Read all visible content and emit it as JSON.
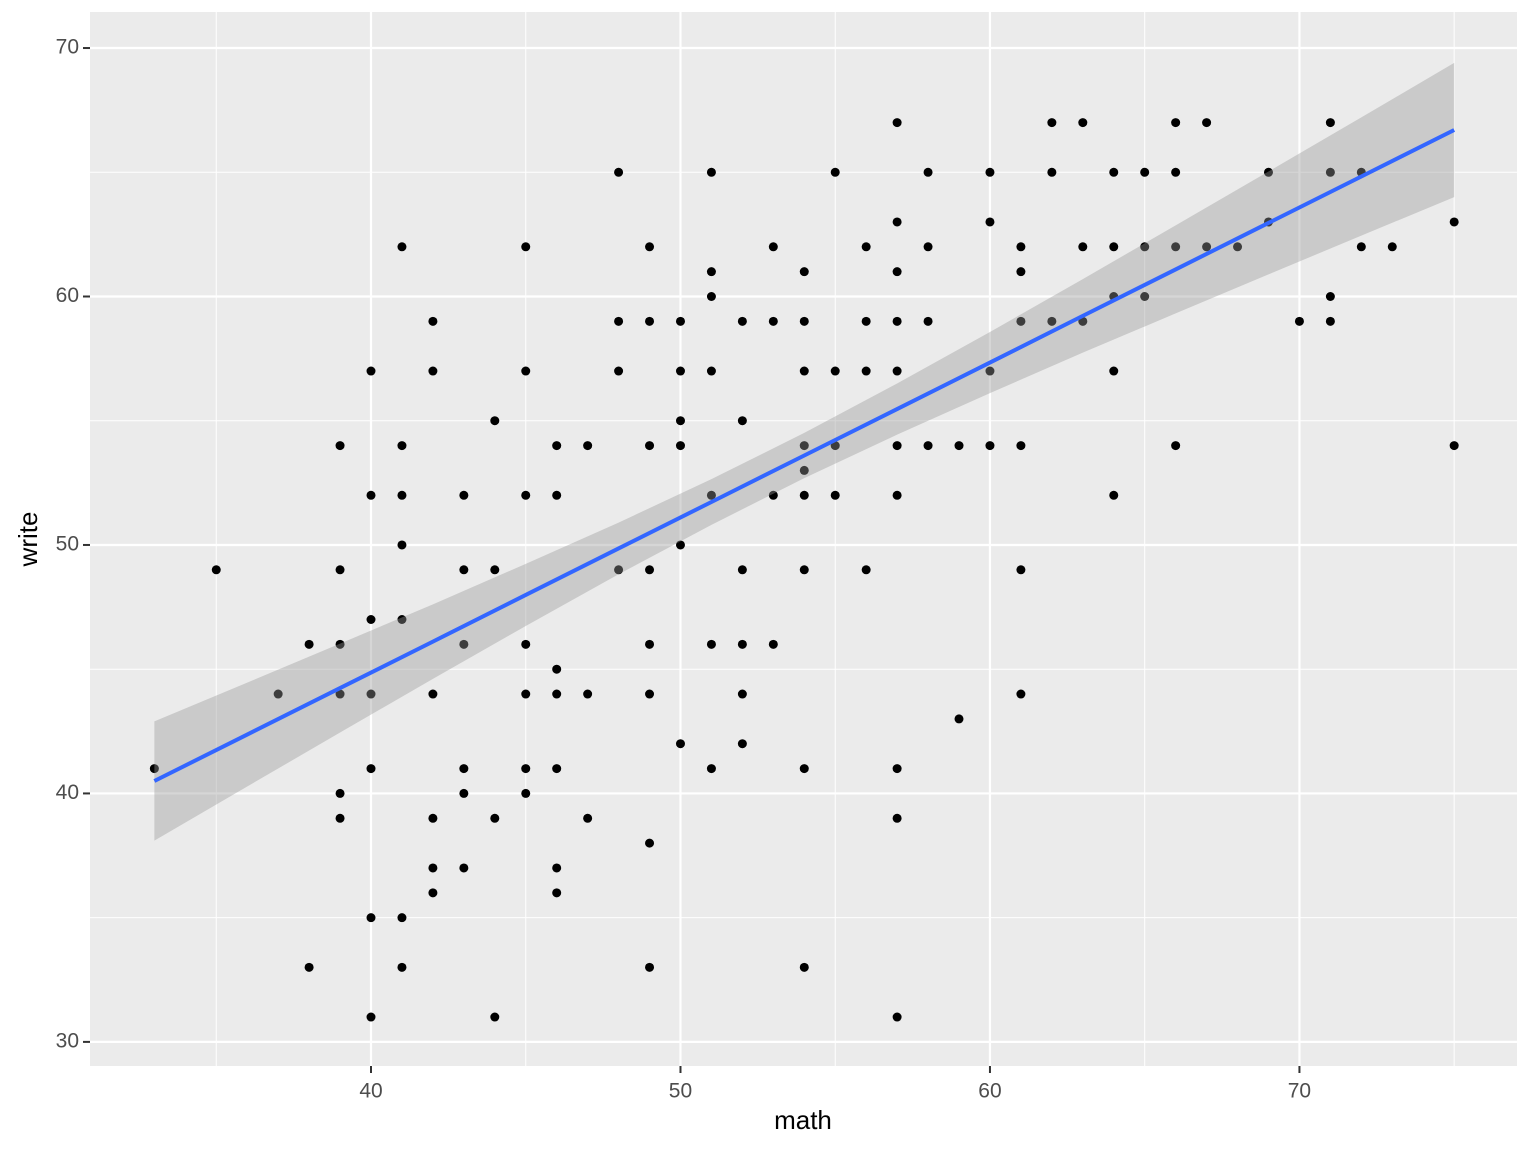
{
  "chart_data": {
    "type": "scatter",
    "x_label": "math",
    "y_label": "write",
    "xlim": [
      30.92,
      77.03
    ],
    "ylim": [
      29.03,
      71.45
    ],
    "xticks": [
      40,
      50,
      60,
      70
    ],
    "yticks": [
      30,
      40,
      50,
      60,
      70
    ],
    "xminor": [
      35,
      45,
      55,
      65,
      75
    ],
    "yminor": [
      35,
      45,
      55,
      65
    ],
    "grid": true,
    "point_color": "#000000",
    "points": [
      [
        33,
        41
      ],
      [
        35,
        49
      ],
      [
        37,
        44
      ],
      [
        38,
        46
      ],
      [
        38,
        33
      ],
      [
        39,
        54
      ],
      [
        39,
        49
      ],
      [
        39,
        46
      ],
      [
        39,
        44
      ],
      [
        39,
        40
      ],
      [
        39,
        39
      ],
      [
        40,
        57
      ],
      [
        40,
        52
      ],
      [
        40,
        47
      ],
      [
        40,
        44
      ],
      [
        40,
        41
      ],
      [
        40,
        35
      ],
      [
        40,
        31
      ],
      [
        41,
        62
      ],
      [
        41,
        54
      ],
      [
        41,
        52
      ],
      [
        41,
        50
      ],
      [
        41,
        47
      ],
      [
        41,
        35
      ],
      [
        41,
        33
      ],
      [
        42,
        59
      ],
      [
        42,
        57
      ],
      [
        42,
        44
      ],
      [
        42,
        39
      ],
      [
        42,
        37
      ],
      [
        42,
        36
      ],
      [
        43,
        52
      ],
      [
        43,
        49
      ],
      [
        43,
        46
      ],
      [
        43,
        41
      ],
      [
        43,
        40
      ],
      [
        43,
        37
      ],
      [
        44,
        55
      ],
      [
        44,
        49
      ],
      [
        44,
        39
      ],
      [
        44,
        31
      ],
      [
        45,
        62
      ],
      [
        45,
        57
      ],
      [
        45,
        52
      ],
      [
        45,
        46
      ],
      [
        45,
        44
      ],
      [
        45,
        41
      ],
      [
        45,
        40
      ],
      [
        46,
        54
      ],
      [
        46,
        52
      ],
      [
        46,
        45
      ],
      [
        46,
        44
      ],
      [
        46,
        41
      ],
      [
        46,
        37
      ],
      [
        46,
        36
      ],
      [
        47,
        54
      ],
      [
        47,
        44
      ],
      [
        47,
        39
      ],
      [
        48,
        65
      ],
      [
        48,
        59
      ],
      [
        48,
        57
      ],
      [
        48,
        49
      ],
      [
        49,
        62
      ],
      [
        49,
        59
      ],
      [
        49,
        54
      ],
      [
        49,
        49
      ],
      [
        49,
        46
      ],
      [
        49,
        44
      ],
      [
        49,
        38
      ],
      [
        49,
        33
      ],
      [
        50,
        59
      ],
      [
        50,
        57
      ],
      [
        50,
        55
      ],
      [
        50,
        54
      ],
      [
        50,
        50
      ],
      [
        50,
        42
      ],
      [
        51,
        65
      ],
      [
        51,
        61
      ],
      [
        51,
        60
      ],
      [
        51,
        57
      ],
      [
        51,
        52
      ],
      [
        51,
        46
      ],
      [
        51,
        41
      ],
      [
        52,
        59
      ],
      [
        52,
        55
      ],
      [
        52,
        49
      ],
      [
        52,
        46
      ],
      [
        52,
        44
      ],
      [
        52,
        42
      ],
      [
        53,
        62
      ],
      [
        53,
        59
      ],
      [
        53,
        52
      ],
      [
        53,
        46
      ],
      [
        54,
        61
      ],
      [
        54,
        59
      ],
      [
        54,
        57
      ],
      [
        54,
        54
      ],
      [
        54,
        53
      ],
      [
        54,
        52
      ],
      [
        54,
        49
      ],
      [
        54,
        41
      ],
      [
        54,
        33
      ],
      [
        55,
        65
      ],
      [
        55,
        57
      ],
      [
        55,
        54
      ],
      [
        55,
        52
      ],
      [
        56,
        62
      ],
      [
        56,
        59
      ],
      [
        56,
        57
      ],
      [
        56,
        49
      ],
      [
        57,
        67
      ],
      [
        57,
        63
      ],
      [
        57,
        61
      ],
      [
        57,
        59
      ],
      [
        57,
        57
      ],
      [
        57,
        54
      ],
      [
        57,
        52
      ],
      [
        57,
        41
      ],
      [
        57,
        39
      ],
      [
        57,
        31
      ],
      [
        58,
        65
      ],
      [
        58,
        62
      ],
      [
        58,
        59
      ],
      [
        58,
        54
      ],
      [
        59,
        54
      ],
      [
        59,
        43
      ],
      [
        60,
        65
      ],
      [
        60,
        63
      ],
      [
        60,
        57
      ],
      [
        60,
        54
      ],
      [
        61,
        62
      ],
      [
        61,
        61
      ],
      [
        61,
        59
      ],
      [
        61,
        54
      ],
      [
        61,
        49
      ],
      [
        61,
        44
      ],
      [
        62,
        67
      ],
      [
        62,
        65
      ],
      [
        62,
        59
      ],
      [
        63,
        67
      ],
      [
        63,
        62
      ],
      [
        63,
        59
      ],
      [
        64,
        65
      ],
      [
        64,
        62
      ],
      [
        64,
        60
      ],
      [
        64,
        57
      ],
      [
        64,
        52
      ],
      [
        65,
        65
      ],
      [
        65,
        62
      ],
      [
        65,
        60
      ],
      [
        66,
        67
      ],
      [
        66,
        65
      ],
      [
        66,
        62
      ],
      [
        66,
        54
      ],
      [
        67,
        67
      ],
      [
        67,
        62
      ],
      [
        68,
        62
      ],
      [
        69,
        65
      ],
      [
        69,
        63
      ],
      [
        70,
        59
      ],
      [
        71,
        67
      ],
      [
        71,
        65
      ],
      [
        71,
        60
      ],
      [
        71,
        59
      ],
      [
        72,
        65
      ],
      [
        72,
        62
      ],
      [
        73,
        62
      ],
      [
        75,
        63
      ],
      [
        75,
        54
      ]
    ],
    "fit": {
      "color": "#3366ff",
      "band_color": "#999999",
      "x": [
        33,
        36,
        39,
        42,
        45,
        48,
        51,
        54,
        57,
        60,
        63,
        66,
        69,
        72,
        75
      ],
      "y": [
        40.5,
        42.37,
        44.24,
        46.11,
        47.99,
        49.86,
        51.73,
        53.6,
        55.47,
        57.34,
        59.22,
        61.09,
        62.96,
        64.83,
        66.7
      ],
      "lower": [
        38.1,
        40.28,
        42.45,
        44.61,
        46.74,
        48.82,
        50.81,
        52.69,
        54.44,
        56.11,
        57.74,
        59.32,
        60.89,
        62.45,
        64.0
      ],
      "upper": [
        42.9,
        44.46,
        46.03,
        47.61,
        49.24,
        50.9,
        52.65,
        54.51,
        56.5,
        58.57,
        60.7,
        62.86,
        65.03,
        67.21,
        69.4
      ]
    }
  }
}
